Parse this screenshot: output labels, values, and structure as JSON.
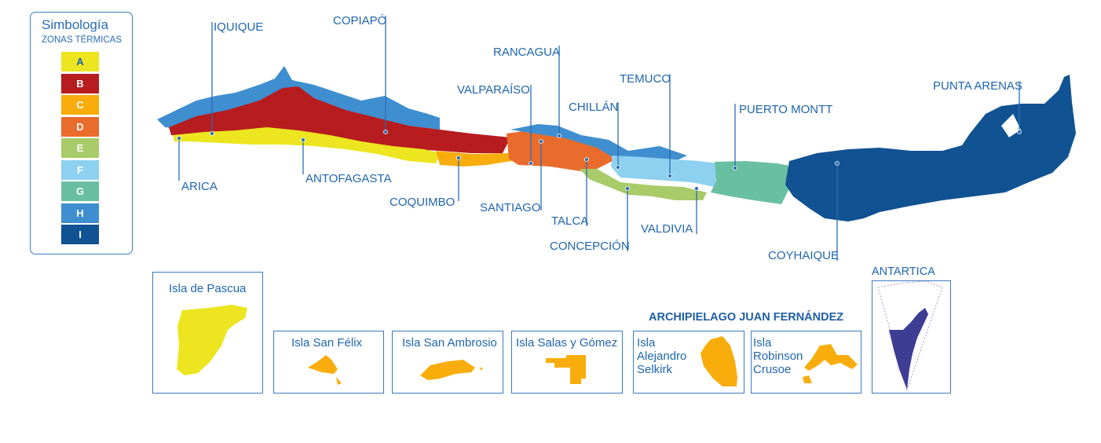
{
  "legend": {
    "title": "Simbología",
    "subtitle": "ZONAS TÉRMICAS",
    "zones": [
      {
        "label": "A",
        "color": "#ece51f"
      },
      {
        "label": "B",
        "color": "#b71c1e"
      },
      {
        "label": "C",
        "color": "#f8ad0c"
      },
      {
        "label": "D",
        "color": "#e96c2c"
      },
      {
        "label": "E",
        "color": "#a9cb69"
      },
      {
        "label": "F",
        "color": "#8dd0ef"
      },
      {
        "label": "G",
        "color": "#69bfa2"
      },
      {
        "label": "H",
        "color": "#3f8fd0"
      },
      {
        "label": "I",
        "color": "#115293"
      }
    ]
  },
  "cities": [
    "ARICA",
    "IQUIQUE",
    "ANTOFAGASTA",
    "COPIAPÓ",
    "COQUIMBO",
    "VALPARAÍSO",
    "SANTIAGO",
    "RANCAGUA",
    "TALCA",
    "CHILLÁN",
    "CONCEPCIÓN",
    "TEMUCO",
    "VALDIVIA",
    "PUERTO MONTT",
    "COYHAIQUE",
    "PUNTA ARENAS"
  ],
  "insets": {
    "pascua": "Isla de Pascua",
    "san_felix": "Isla San Félix",
    "san_ambrosio": "Isla San Ambrosio",
    "salas_gomez": "Isla Salas y Gómez",
    "archipelago_title": "ARCHIPIELAGO JUAN FERNÁNDEZ",
    "selkirk": [
      "Isla",
      "Alejandro",
      "Selkirk"
    ],
    "crusoe": [
      "Isla",
      "Robinson",
      "Crusoe"
    ],
    "antartica": "ANTARTICA"
  }
}
